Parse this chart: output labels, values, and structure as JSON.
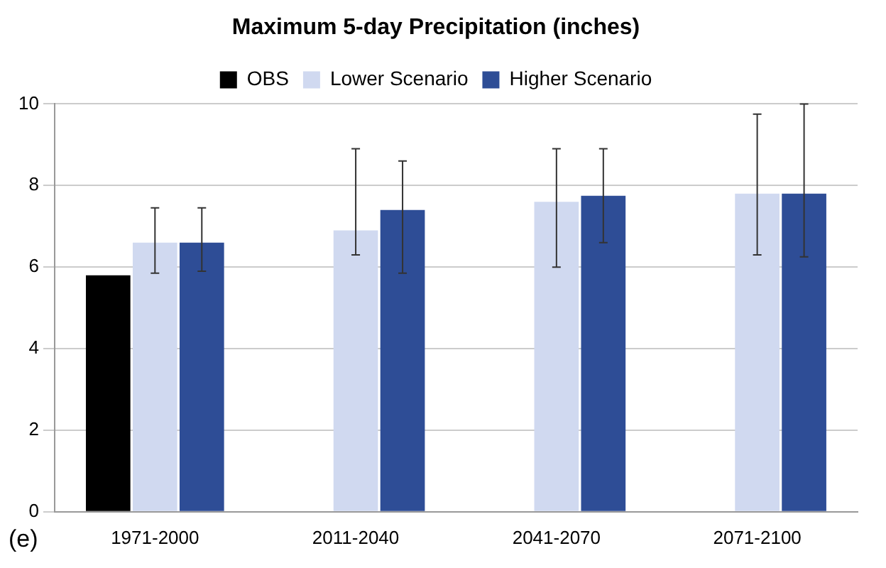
{
  "chart_data": {
    "type": "bar",
    "title": "Maximum 5-day Precipitation (inches)",
    "categories": [
      "1971-2000",
      "2011-2040",
      "2041-2070",
      "2071-2100"
    ],
    "series": [
      {
        "name": "OBS",
        "color": "#000000",
        "values": [
          5.8,
          null,
          null,
          null
        ]
      },
      {
        "name": "Lower Scenario",
        "color": "#d0d9f0",
        "values": [
          6.6,
          6.9,
          7.6,
          7.8
        ],
        "errors": [
          [
            5.85,
            7.45
          ],
          [
            6.3,
            8.9
          ],
          [
            6.0,
            8.9
          ],
          [
            6.3,
            9.75
          ]
        ]
      },
      {
        "name": "Higher Scenario",
        "color": "#2e4d96",
        "values": [
          6.6,
          7.4,
          7.75,
          7.8
        ],
        "errors": [
          [
            5.9,
            7.45
          ],
          [
            5.85,
            8.6
          ],
          [
            6.6,
            8.9
          ],
          [
            6.25,
            10
          ]
        ]
      }
    ],
    "ylim": [
      0,
      10
    ],
    "yticks": [
      0,
      2,
      4,
      6,
      8,
      10
    ],
    "grid": "y",
    "legend": "top",
    "annotations": [
      "(e)"
    ]
  }
}
